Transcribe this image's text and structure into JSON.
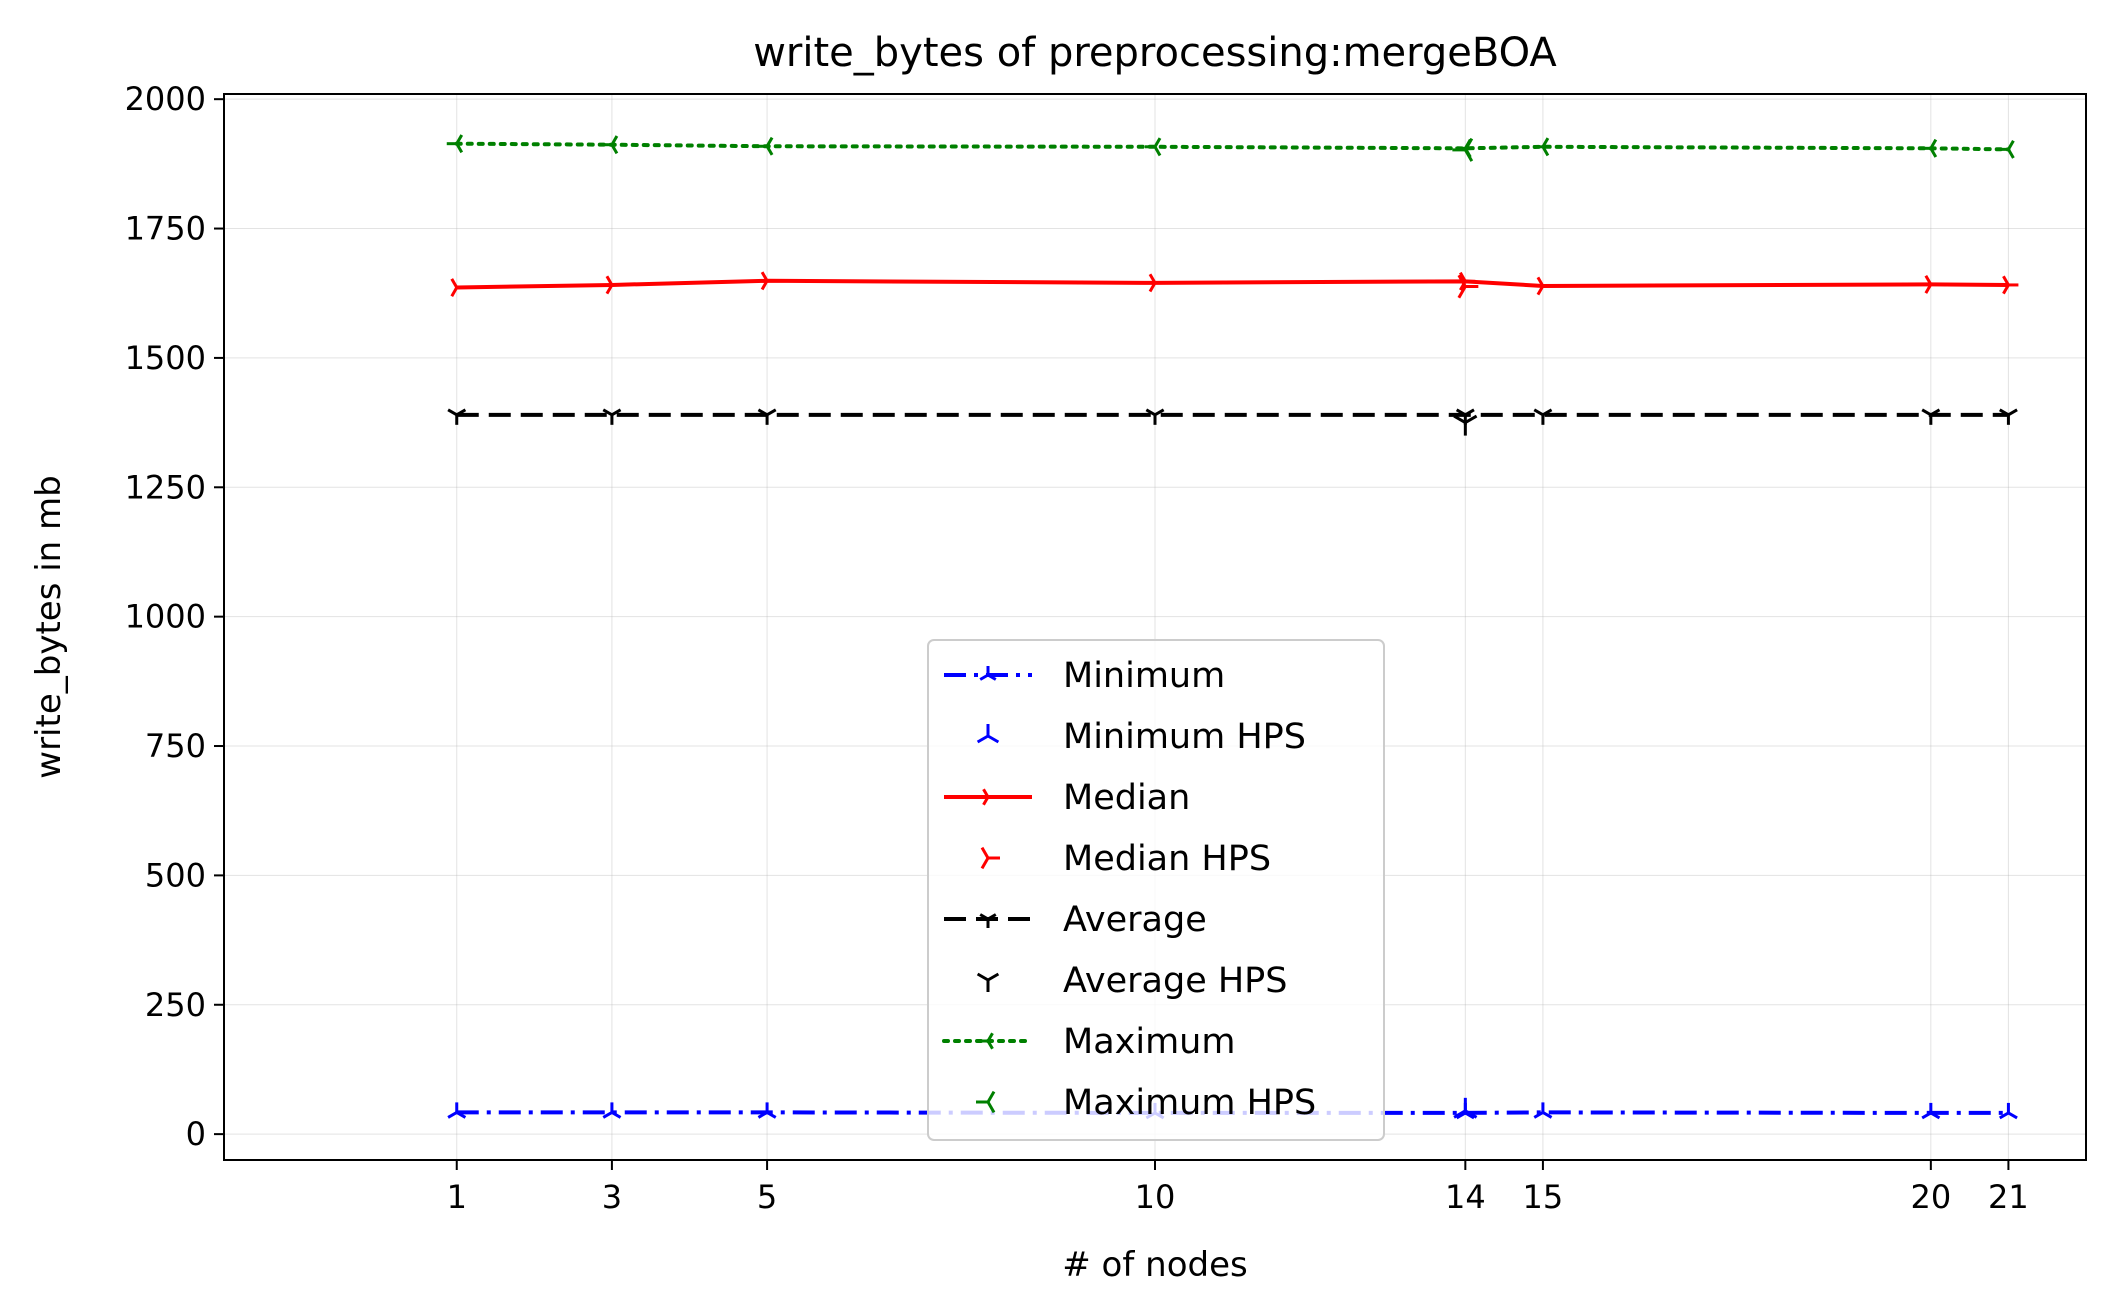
{
  "chart_data": {
    "type": "line",
    "title": "write_bytes of preprocessing:mergeBOA",
    "xlabel": "# of nodes",
    "ylabel": "write_bytes in mb",
    "x": [
      1,
      3,
      5,
      10,
      14,
      15,
      20,
      21
    ],
    "xlim": [
      -2,
      22
    ],
    "ylim": [
      -50,
      2010
    ],
    "yticks": [
      0,
      250,
      500,
      750,
      1000,
      1250,
      1500,
      1750,
      2000
    ],
    "grid": true,
    "legend_position": "center-bottom",
    "series": [
      {
        "name": "Minimum",
        "color": "#0000ff",
        "style": "dashdot",
        "marker": "tri-up",
        "values": [
          42,
          42,
          42,
          41,
          41,
          42,
          41,
          41
        ]
      },
      {
        "name": "Minimum HPS",
        "color": "#0000ff",
        "style": "none",
        "marker": "tri-up",
        "x": [
          14
        ],
        "values": [
          45
        ]
      },
      {
        "name": "Median",
        "color": "#ff0000",
        "style": "solid",
        "marker": "tri-right",
        "values": [
          1636,
          1641,
          1649,
          1645,
          1648,
          1639,
          1642,
          1641
        ]
      },
      {
        "name": "Median HPS",
        "color": "#ff0000",
        "style": "none",
        "marker": "tri-right",
        "x": [
          14
        ],
        "values": [
          1638
        ]
      },
      {
        "name": "Average",
        "color": "#000000",
        "style": "dashed",
        "marker": "tri-down",
        "values": [
          1390,
          1390,
          1390,
          1390,
          1390,
          1390,
          1390,
          1390
        ]
      },
      {
        "name": "Average HPS",
        "color": "#000000",
        "style": "none",
        "marker": "tri-down",
        "x": [
          14
        ],
        "values": [
          1375
        ]
      },
      {
        "name": "Maximum",
        "color": "#008000",
        "style": "dotted",
        "marker": "tri-left",
        "values": [
          1914,
          1912,
          1909,
          1908,
          1905,
          1908,
          1905,
          1903
        ]
      },
      {
        "name": "Maximum HPS",
        "color": "#008000",
        "style": "none",
        "marker": "tri-left",
        "x": [
          14
        ],
        "values": [
          1902
        ]
      }
    ]
  }
}
